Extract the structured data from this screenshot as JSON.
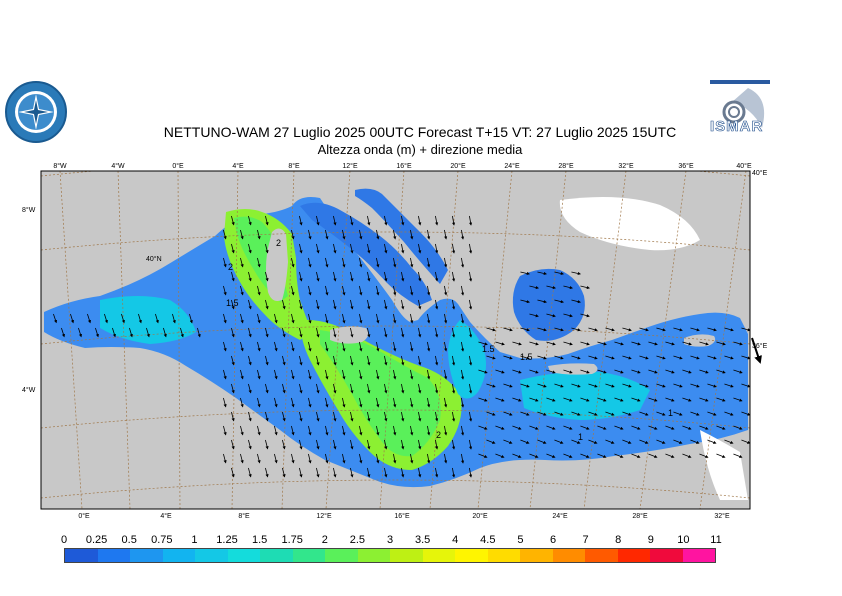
{
  "header": {
    "title_line1": "NETTUNO-WAM  27  Luglio   2025 00UTC Forecast T+15 VT: 27  Luglio   2025 15UTC",
    "title_line2": "Altezza onda (m) + direzione media"
  },
  "logos": {
    "left": "logo-seal",
    "right": "ISMAR"
  },
  "map_labels": {
    "top_ticks": [
      "8°W",
      "4°W",
      "0°E",
      "4°E",
      "8°E",
      "12°E",
      "16°E",
      "20°E",
      "24°E",
      "28°E",
      "32°E",
      "36°E",
      "40°E"
    ],
    "bottom_ticks": [
      "0°E",
      "4°E",
      "8°E",
      "12°E",
      "16°E",
      "20°E",
      "24°E",
      "28°E",
      "32°E"
    ],
    "left_ticks": [
      "8°W",
      "40°N",
      "4°W"
    ],
    "right_ticks": [
      "40°E",
      "36°E"
    ],
    "contour_labels": [
      "2",
      "1.5",
      "2",
      "1.5",
      "1.5",
      "2",
      "1",
      "1"
    ]
  },
  "legend": {
    "labels": [
      "0",
      "0.25",
      "0.5",
      "0.75",
      "1",
      "1.25",
      "1.5",
      "1.75",
      "2",
      "2.5",
      "3",
      "3.5",
      "4",
      "4.5",
      "5",
      "6",
      "7",
      "8",
      "9",
      "10",
      "11"
    ],
    "colors": [
      "#1e5ad8",
      "#1e78f0",
      "#1e96f0",
      "#12b4f0",
      "#14c8e6",
      "#14dcdc",
      "#1edcb4",
      "#32e68c",
      "#5af05a",
      "#8cf032",
      "#bef014",
      "#e6f50a",
      "#fff500",
      "#ffdc00",
      "#ffb400",
      "#ff8c00",
      "#ff5a00",
      "#ff2800",
      "#f00a3c",
      "#ff14a0",
      "#ff28d2"
    ]
  },
  "colors": {
    "land": "#c8c8c8",
    "sea_low": "#3c8cf0",
    "sea_mid": "#14c8e6",
    "sea_high": "#8cf032",
    "graticule": "#a0784a"
  }
}
